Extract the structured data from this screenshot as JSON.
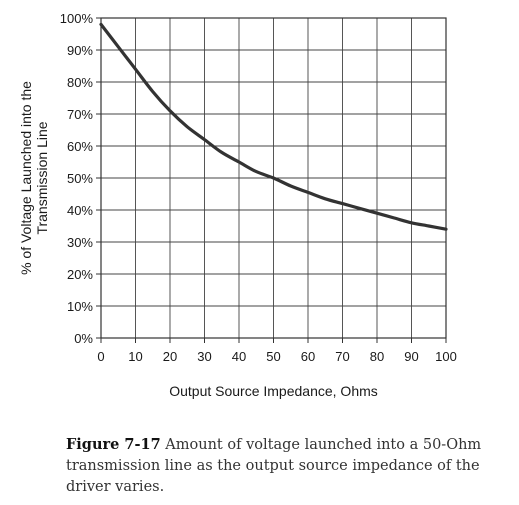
{
  "chart_data": {
    "type": "line",
    "title": "",
    "xlabel": "Output Source Impedance, Ohms",
    "ylabel_line1": "% of Voltage Launched into the",
    "ylabel_line2": "Transmission Line",
    "xlim": [
      0,
      100
    ],
    "ylim": [
      0,
      100
    ],
    "x_ticks": [
      0,
      10,
      20,
      30,
      40,
      50,
      60,
      70,
      80,
      90,
      100
    ],
    "x_tick_labels": [
      "0",
      "10",
      "20",
      "30",
      "40",
      "50",
      "60",
      "70",
      "80",
      "90",
      "100"
    ],
    "y_ticks": [
      0,
      10,
      20,
      30,
      40,
      50,
      60,
      70,
      80,
      90,
      100
    ],
    "y_tick_labels": [
      "0%",
      "10%",
      "20%",
      "30%",
      "40%",
      "50%",
      "60%",
      "70%",
      "80%",
      "90%",
      "100%"
    ],
    "grid": true,
    "series": [
      {
        "color": "#333333",
        "x": [
          0,
          5,
          10,
          15,
          20,
          25,
          30,
          35,
          40,
          45,
          50,
          55,
          60,
          65,
          70,
          75,
          80,
          85,
          90,
          95,
          100
        ],
        "y": [
          98,
          91,
          84,
          77,
          71,
          66,
          62,
          58,
          55,
          52,
          50,
          47.5,
          45.5,
          43.5,
          42,
          40.5,
          39,
          37.5,
          36,
          35,
          34
        ]
      }
    ]
  },
  "caption": {
    "figure_label": "Figure 7-17",
    "text": " Amount of voltage launched into a 50-Ohm transmission line as the output source impedance of the driver varies."
  }
}
